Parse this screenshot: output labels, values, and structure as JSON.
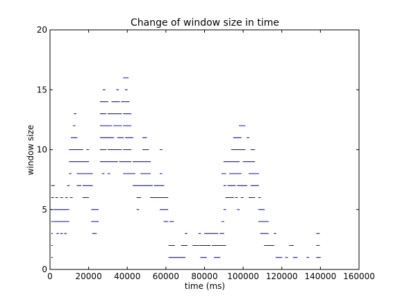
{
  "chart_data": {
    "type": "scatter",
    "title": "Change of window size in time",
    "xlabel": "time (ms)",
    "ylabel": "window size",
    "xlim": [
      0,
      160000
    ],
    "ylim": [
      0,
      20
    ],
    "xticks": [
      0,
      20000,
      40000,
      60000,
      80000,
      100000,
      120000,
      140000,
      160000
    ],
    "yticks": [
      0,
      5,
      10,
      15,
      20
    ],
    "grid": false,
    "marker_color": "#0000ff",
    "series": [
      {
        "segments": [
          {
            "y": 1,
            "x": [
              [
                800,
                1500
              ],
              [
                61500,
                70000
              ],
              [
                78000,
                81000
              ],
              [
                85000,
                88000
              ],
              [
                117000,
                120000
              ],
              [
                122000,
                123000
              ],
              [
                126000,
                128000
              ],
              [
                133000,
                134000
              ],
              [
                138000,
                140000
              ]
            ]
          },
          {
            "y": 2,
            "x": [
              [
                800,
                1500
              ],
              [
                61500,
                64500
              ],
              [
                68000,
                71000
              ],
              [
                74000,
                77000
              ],
              [
                77500,
                83000
              ],
              [
                84000,
                91000
              ],
              [
                111000,
                116000
              ],
              [
                124000,
                126000
              ],
              [
                138000,
                139500
              ]
            ]
          },
          {
            "y": 3,
            "x": [
              [
                800,
                1500
              ],
              [
                3500,
                4500
              ],
              [
                5500,
                6500
              ],
              [
                7500,
                8500
              ],
              [
                22000,
                24000
              ],
              [
                70000,
                71000
              ],
              [
                77000,
                78000
              ],
              [
                80000,
                87000
              ],
              [
                88000,
                90000
              ],
              [
                109000,
                113000
              ],
              [
                116000,
                117000
              ],
              [
                138000,
                139500
              ]
            ]
          },
          {
            "y": 4,
            "x": [
              [
                800,
                1500
              ],
              [
                1800,
                10000
              ],
              [
                21500,
                25000
              ],
              [
                59000,
                61000
              ],
              [
                62000,
                64000
              ],
              [
                89000,
                90000
              ],
              [
                108000,
                113000
              ]
            ]
          },
          {
            "y": 5,
            "x": [
              [
                800,
                1500
              ],
              [
                1800,
                10000
              ],
              [
                21500,
                25000
              ],
              [
                45000,
                46000
              ],
              [
                57000,
                61000
              ],
              [
                90000,
                91000
              ],
              [
                97000,
                98000
              ],
              [
                108000,
                111000
              ]
            ]
          },
          {
            "y": 6,
            "x": [
              [
                800,
                2000
              ],
              [
                3000,
                4000
              ],
              [
                5500,
                6500
              ],
              [
                8000,
                9000
              ],
              [
                10500,
                11500
              ],
              [
                17000,
                20000
              ],
              [
                45000,
                47000
              ],
              [
                52000,
                61000
              ],
              [
                91000,
                95000
              ],
              [
                96000,
                97000
              ],
              [
                99000,
                100000
              ],
              [
                103000,
                106000
              ],
              [
                108000,
                109000
              ]
            ]
          },
          {
            "y": 7,
            "x": [
              [
                800,
                2500
              ],
              [
                9000,
                10000
              ],
              [
                14000,
                16000
              ],
              [
                17000,
                22000
              ],
              [
                43000,
                50000
              ],
              [
                50000,
                53000
              ],
              [
                54000,
                59000
              ],
              [
                90000,
                91000
              ],
              [
                92000,
                96000
              ],
              [
                97000,
                102000
              ],
              [
                104000,
                108000
              ]
            ]
          },
          {
            "y": 8,
            "x": [
              [
                10000,
                11000
              ],
              [
                14000,
                22000
              ],
              [
                27000,
                28000
              ],
              [
                30000,
                31000
              ],
              [
                38000,
                44000
              ],
              [
                47000,
                52000
              ],
              [
                57000,
                58000
              ],
              [
                89000,
                91000
              ],
              [
                93000,
                99000
              ],
              [
                103000,
                108000
              ]
            ]
          },
          {
            "y": 9,
            "x": [
              [
                10000,
                20000
              ],
              [
                26000,
                35000
              ],
              [
                36000,
                42000
              ],
              [
                43000,
                52000
              ],
              [
                90000,
                98000
              ],
              [
                100000,
                106000
              ]
            ]
          },
          {
            "y": 10,
            "x": [
              [
                10000,
                17000
              ],
              [
                19000,
                20000
              ],
              [
                26000,
                29000
              ],
              [
                30000,
                37000
              ],
              [
                38000,
                42000
              ],
              [
                48000,
                51000
              ],
              [
                57000,
                58000
              ],
              [
                94000,
                101000
              ],
              [
                104000,
                106000
              ]
            ]
          },
          {
            "y": 11,
            "x": [
              [
                11000,
                14000
              ],
              [
                26000,
                33000
              ],
              [
                35000,
                38000
              ],
              [
                39000,
                43000
              ],
              [
                48000,
                50000
              ],
              [
                95000,
                99000
              ],
              [
                102000,
                103000
              ]
            ]
          },
          {
            "y": 12,
            "x": [
              [
                12000,
                13000
              ],
              [
                26000,
                32000
              ],
              [
                33000,
                37000
              ],
              [
                38000,
                42000
              ],
              [
                98000,
                101000
              ]
            ]
          },
          {
            "y": 13,
            "x": [
              [
                12500,
                13500
              ],
              [
                26000,
                29000
              ],
              [
                30000,
                37000
              ],
              [
                38000,
                42000
              ]
            ]
          },
          {
            "y": 14,
            "x": [
              [
                26000,
                30000
              ],
              [
                32000,
                36000
              ],
              [
                37000,
                41000
              ]
            ]
          },
          {
            "y": 15,
            "x": [
              [
                27500,
                28500
              ],
              [
                34500,
                35500
              ],
              [
                39000,
                40000
              ]
            ]
          },
          {
            "y": 16,
            "x": [
              [
                38000,
                40500
              ]
            ]
          }
        ]
      }
    ]
  }
}
